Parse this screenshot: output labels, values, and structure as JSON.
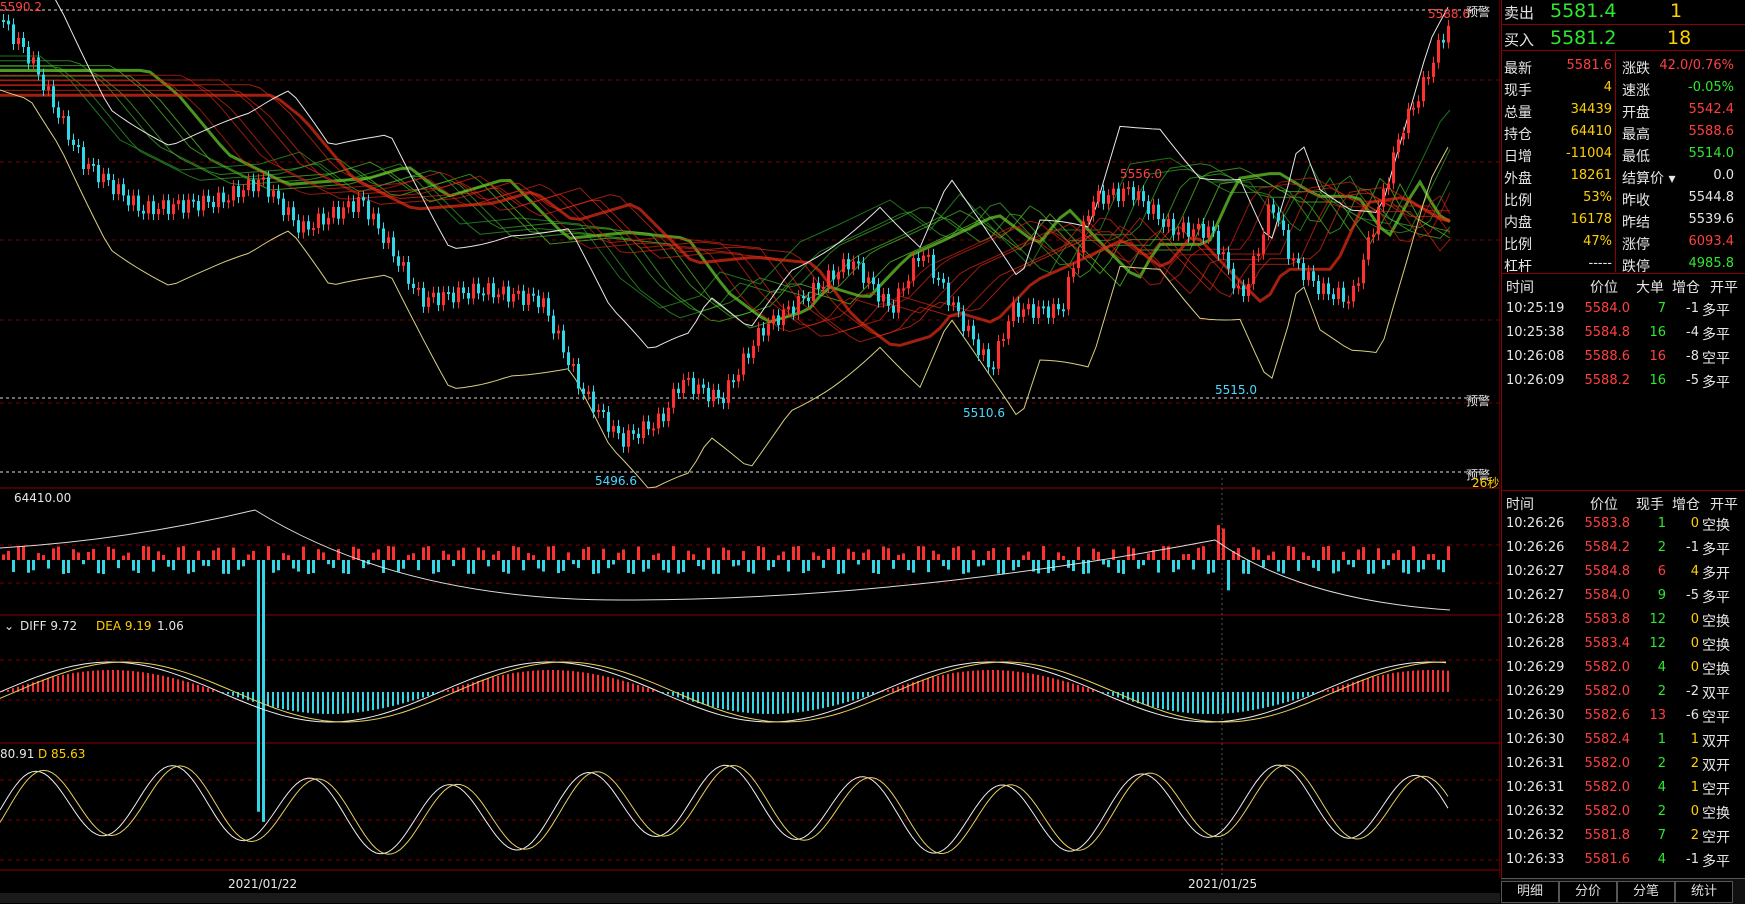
{
  "main_chart": {
    "price_labels": {
      "top_left": "5590.2",
      "top_right": "5588.6",
      "peak1": "5556.0",
      "low1": "5496.6",
      "low2": "5510.6",
      "low3": "5515.0"
    },
    "alerts": {
      "upper": "预警",
      "lower": "预警",
      "bottom": "预警",
      "countdown": "26秒"
    }
  },
  "volume_panel": {
    "label": "64410.00"
  },
  "macd_panel": {
    "diff_label": "DIFF 9.72",
    "dea_label": "DEA 9.19",
    "macd_value": "1.06"
  },
  "kdj_panel": {
    "k_label": "80.91",
    "d_label": "D 85.63"
  },
  "dates": [
    "2021/01/22",
    "2021/01/25"
  ],
  "quote": {
    "sell": {
      "label": "卖出",
      "price": "5581.4",
      "qty": "1"
    },
    "buy": {
      "label": "买入",
      "price": "5581.2",
      "qty": "18"
    },
    "rows": [
      {
        "l": "最新",
        "lv": "5581.6",
        "r": "涨跌",
        "rv": "42.0/0.76%",
        "lc": "red",
        "rc": "red"
      },
      {
        "l": "现手",
        "lv": "4",
        "r": "速涨",
        "rv": "-0.05%",
        "lc": "yellow",
        "rc": "green"
      },
      {
        "l": "总量",
        "lv": "34439",
        "r": "开盘",
        "rv": "5542.4",
        "lc": "yellow",
        "rc": "red"
      },
      {
        "l": "持仓",
        "lv": "64410",
        "r": "最高",
        "rv": "5588.6",
        "lc": "yellow",
        "rc": "red"
      },
      {
        "l": "日增",
        "lv": "-11004",
        "r": "最低",
        "rv": "5514.0",
        "lc": "yellow",
        "rc": "green"
      },
      {
        "l": "外盘",
        "lv": "18261",
        "r": "结算价",
        "rv": "0.0",
        "lc": "yellow",
        "rc": "white"
      },
      {
        "l": "比例",
        "lv": "53%",
        "r": "昨收",
        "rv": "5544.8",
        "lc": "yellow",
        "rc": "white"
      },
      {
        "l": "内盘",
        "lv": "16178",
        "r": "昨结",
        "rv": "5539.6",
        "lc": "yellow",
        "rc": "white"
      },
      {
        "l": "比例",
        "lv": "47%",
        "r": "涨停",
        "rv": "6093.4",
        "lc": "yellow",
        "rc": "red"
      },
      {
        "l": "杠杆",
        "lv": "-----",
        "r": "跌停",
        "rv": "4985.8",
        "lc": "white",
        "rc": "green"
      }
    ]
  },
  "big_orders": {
    "headers": [
      "时间",
      "价位",
      "大单",
      "增仓",
      "开平"
    ],
    "rows": [
      {
        "t": "10:25:19",
        "p": "5584.0",
        "q": "7",
        "d": "-1",
        "k": "多平",
        "qc": "green"
      },
      {
        "t": "10:25:38",
        "p": "5584.8",
        "q": "16",
        "d": "-4",
        "k": "多平",
        "qc": "green"
      },
      {
        "t": "10:26:08",
        "p": "5588.6",
        "q": "16",
        "d": "-8",
        "k": "空平",
        "qc": "red"
      },
      {
        "t": "10:26:09",
        "p": "5588.2",
        "q": "16",
        "d": "-5",
        "k": "多平",
        "qc": "green"
      }
    ]
  },
  "ticks": {
    "headers": [
      "时间",
      "价位",
      "现手",
      "增仓",
      "开平"
    ],
    "rows": [
      {
        "t": "10:26:26",
        "p": "5583.8",
        "q": "1",
        "d": "0",
        "k": "空换",
        "qc": "green"
      },
      {
        "t": "10:26:26",
        "p": "5584.2",
        "q": "2",
        "d": "-1",
        "k": "多平",
        "qc": "green"
      },
      {
        "t": "10:26:27",
        "p": "5584.8",
        "q": "6",
        "d": "4",
        "k": "多开",
        "qc": "red"
      },
      {
        "t": "10:26:27",
        "p": "5584.0",
        "q": "9",
        "d": "-5",
        "k": "多平",
        "qc": "green"
      },
      {
        "t": "10:26:28",
        "p": "5583.8",
        "q": "12",
        "d": "0",
        "k": "空换",
        "qc": "green"
      },
      {
        "t": "10:26:28",
        "p": "5583.4",
        "q": "12",
        "d": "0",
        "k": "空换",
        "qc": "green"
      },
      {
        "t": "10:26:29",
        "p": "5582.0",
        "q": "4",
        "d": "0",
        "k": "空换",
        "qc": "green"
      },
      {
        "t": "10:26:29",
        "p": "5582.0",
        "q": "2",
        "d": "-2",
        "k": "双平",
        "qc": "green"
      },
      {
        "t": "10:26:30",
        "p": "5582.6",
        "q": "13",
        "d": "-6",
        "k": "空平",
        "qc": "red"
      },
      {
        "t": "10:26:30",
        "p": "5582.4",
        "q": "1",
        "d": "1",
        "k": "双开",
        "qc": "green"
      },
      {
        "t": "10:26:31",
        "p": "5582.0",
        "q": "2",
        "d": "2",
        "k": "双开",
        "qc": "green"
      },
      {
        "t": "10:26:31",
        "p": "5582.0",
        "q": "4",
        "d": "1",
        "k": "空开",
        "qc": "green"
      },
      {
        "t": "10:26:32",
        "p": "5582.0",
        "q": "2",
        "d": "0",
        "k": "空换",
        "qc": "green"
      },
      {
        "t": "10:26:32",
        "p": "5581.8",
        "q": "7",
        "d": "2",
        "k": "空开",
        "qc": "green"
      },
      {
        "t": "10:26:33",
        "p": "5581.6",
        "q": "4",
        "d": "-1",
        "k": "多平",
        "qc": "green"
      }
    ]
  },
  "tabs": [
    "明细",
    "分价",
    "分笔",
    "统计"
  ],
  "colors": {
    "up": "#ff3030",
    "down": "#30d8e8",
    "ma_green": "#20c020",
    "ma_red": "#d01010",
    "grid": "#7a0000"
  }
}
